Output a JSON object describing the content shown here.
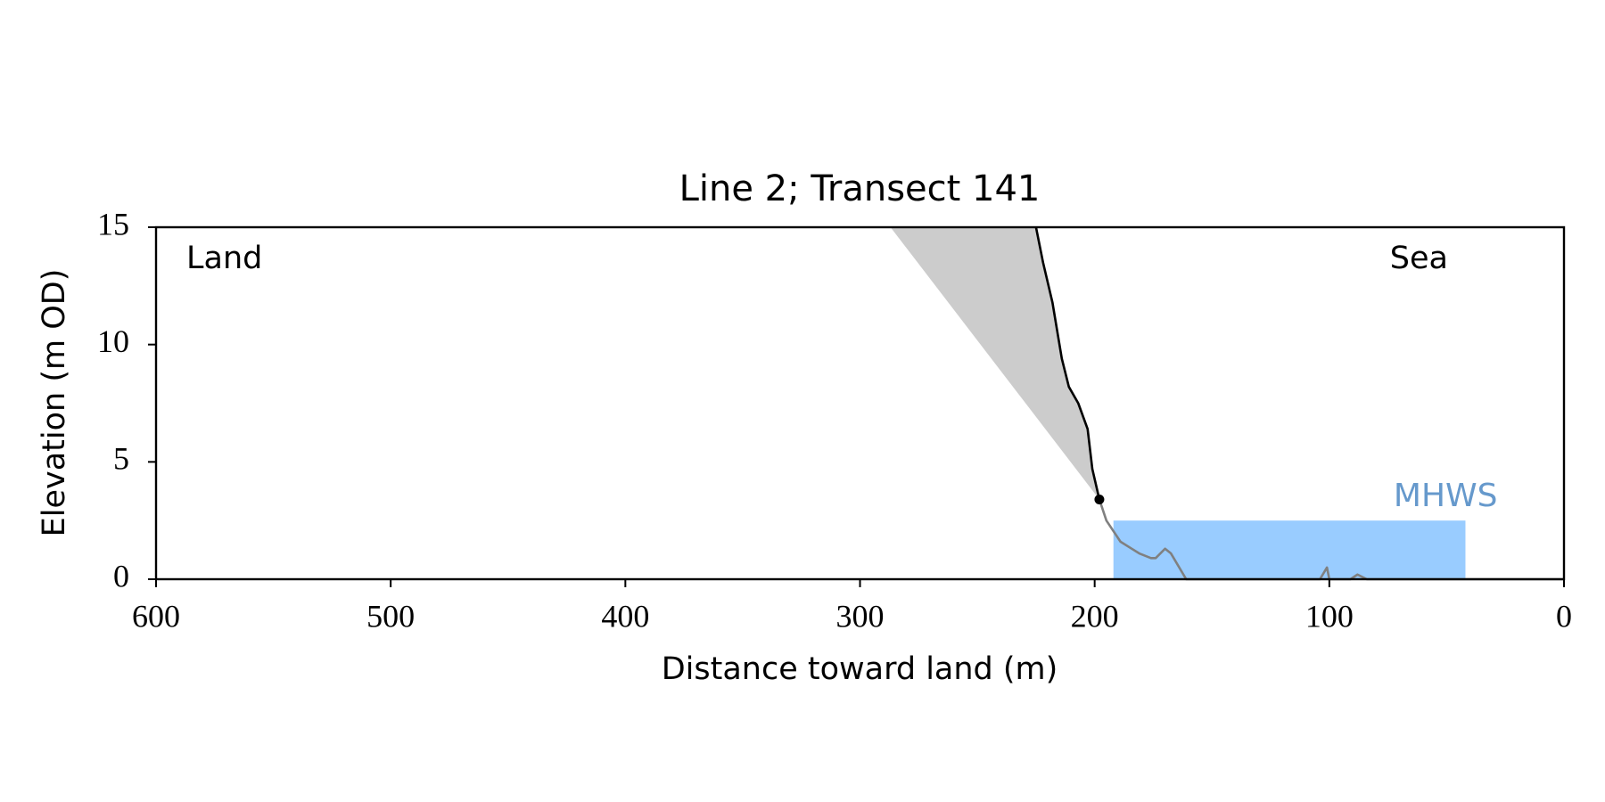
{
  "chart_data": {
    "type": "line",
    "title": "Line 2; Transect 141",
    "x_label": "Distance toward land (m)",
    "y_label": "Elevation (m OD)",
    "annotations": {
      "left": "Land",
      "right": "Sea"
    },
    "xlim": [
      600,
      0
    ],
    "ylim": [
      0,
      15
    ],
    "xticks": [
      600,
      500,
      400,
      300,
      200,
      100,
      0
    ],
    "yticks": [
      0,
      5,
      10,
      15
    ],
    "cliff": {
      "color": "#000000",
      "x": [
        225,
        222,
        218,
        214,
        211,
        207,
        203,
        201,
        198
      ],
      "y": [
        15,
        13.5,
        11.8,
        9.4,
        8.2,
        7.5,
        6.4,
        4.7,
        3.4
      ]
    },
    "beach": {
      "color": "#808080",
      "x": [
        198,
        195,
        189,
        181,
        176,
        174,
        170,
        167.5,
        161,
        104,
        101,
        100,
        91,
        88,
        84,
        0
      ],
      "y": [
        3.4,
        2.5,
        1.6,
        1.1,
        0.9,
        0.9,
        1.3,
        1.1,
        0,
        0,
        0.5,
        0,
        0,
        0.2,
        0,
        0
      ]
    },
    "envelope": {
      "color": "#cccccc",
      "x": [
        287,
        198
      ],
      "y": [
        15,
        3.4
      ]
    },
    "toe": {
      "x": 198,
      "y": 3.4,
      "color": "#000000"
    },
    "mhws": {
      "label": "MHWS",
      "level": 2.5,
      "x_range": [
        192,
        42
      ],
      "color": "#99ccff",
      "label_color": "#6699cc"
    }
  }
}
